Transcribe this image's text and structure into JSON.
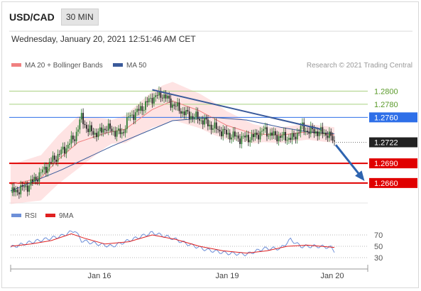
{
  "header": {
    "symbol": "USD/CAD",
    "timeframe": "30 MIN",
    "datetime": "Wednesday, January 20, 2021 12:51:46 AM CET"
  },
  "legend": {
    "bollinger": "MA 20 + Bollinger Bands",
    "ma50": "MA 50",
    "credit": "Research © 2021 Trading Central"
  },
  "rsi_legend": {
    "rsi": "RSI",
    "ma9": "9MA"
  },
  "colors": {
    "up": "#2e7d32",
    "down": "#222222",
    "bollinger": "#fdd0d0",
    "ma20": "#f08080",
    "ma50": "#3a5a9a",
    "rsi": "#6d8fd8",
    "rsi_ma": "#e02020",
    "resistance": "#a8d080",
    "support": "#e00000",
    "pivot": "#2e6fe8"
  },
  "chart_data": [
    {
      "type": "candlestick",
      "ylim": [
        1.2635,
        1.2822
      ],
      "x_ticks": [
        "Jan 16",
        "Jan 19",
        "Jan 20"
      ],
      "levels": [
        {
          "label": "1.2800",
          "value": 1.28,
          "kind": "resistance"
        },
        {
          "label": "1.2780",
          "value": 1.278,
          "kind": "resistance"
        },
        {
          "label": "1.2760",
          "value": 1.276,
          "kind": "pivot"
        },
        {
          "label": "1.2722",
          "value": 1.2722,
          "kind": "current"
        },
        {
          "label": "1.2690",
          "value": 1.269,
          "kind": "support"
        },
        {
          "label": "1.2660",
          "value": 1.266,
          "kind": "support"
        }
      ],
      "trendline": [
        [
          1.2802,
          1.2742
        ]
      ],
      "forecast_target": 1.266,
      "price_anchors": [
        [
          0,
          1.2645
        ],
        [
          10,
          1.2655
        ],
        [
          18,
          1.2675
        ],
        [
          25,
          1.2695
        ],
        [
          32,
          1.2712
        ],
        [
          38,
          1.273
        ],
        [
          42,
          1.276
        ],
        [
          46,
          1.274
        ],
        [
          52,
          1.2735
        ],
        [
          56,
          1.2745
        ],
        [
          60,
          1.274
        ],
        [
          66,
          1.2735
        ],
        [
          70,
          1.276
        ],
        [
          76,
          1.277
        ],
        [
          84,
          1.279
        ],
        [
          90,
          1.2795
        ],
        [
          96,
          1.278
        ],
        [
          104,
          1.2765
        ],
        [
          112,
          1.2758
        ],
        [
          120,
          1.2745
        ],
        [
          128,
          1.2735
        ],
        [
          136,
          1.2728
        ],
        [
          144,
          1.273
        ],
        [
          150,
          1.274
        ],
        [
          156,
          1.2732
        ],
        [
          162,
          1.273
        ],
        [
          168,
          1.2728
        ],
        [
          172,
          1.2745
        ],
        [
          176,
          1.274
        ],
        [
          182,
          1.2738
        ],
        [
          188,
          1.2735
        ],
        [
          192,
          1.2722
        ]
      ],
      "series": [
        {
          "name": "MA 20 + Bollinger Bands",
          "ma20": [
            [
              0,
              1.2658
            ],
            [
              18,
              1.2668
            ],
            [
              28,
              1.2695
            ],
            [
              40,
              1.2722
            ],
            [
              56,
              1.2736
            ],
            [
              68,
              1.2742
            ],
            [
              84,
              1.2772
            ],
            [
              96,
              1.2785
            ],
            [
              112,
              1.277
            ],
            [
              128,
              1.2748
            ],
            [
              144,
              1.2735
            ],
            [
              160,
              1.2733
            ],
            [
              176,
              1.2738
            ],
            [
              192,
              1.2733
            ]
          ],
          "width": [
            [
              0,
              0.003
            ],
            [
              40,
              0.004
            ],
            [
              60,
              0.0018
            ],
            [
              90,
              0.003
            ],
            [
              120,
              0.0025
            ],
            [
              150,
              0.0012
            ],
            [
              192,
              0.0012
            ]
          ]
        },
        {
          "name": "MA 50",
          "values": [
            [
              0,
              1.2648
            ],
            [
              30,
              1.268
            ],
            [
              60,
              1.2716
            ],
            [
              84,
              1.2742
            ],
            [
              96,
              1.2755
            ],
            [
              120,
              1.276
            ],
            [
              140,
              1.2756
            ],
            [
              160,
              1.2745
            ],
            [
              176,
              1.2738
            ],
            [
              192,
              1.2735
            ]
          ]
        }
      ]
    },
    {
      "type": "line",
      "ylim": [
        20,
        90
      ],
      "y_ticks": [
        70,
        50,
        30
      ],
      "series": [
        {
          "name": "RSI",
          "values": [
            [
              0,
              48
            ],
            [
              10,
              56
            ],
            [
              20,
              62
            ],
            [
              30,
              68
            ],
            [
              38,
              78
            ],
            [
              42,
              60
            ],
            [
              52,
              54
            ],
            [
              60,
              50
            ],
            [
              72,
              62
            ],
            [
              84,
              74
            ],
            [
              96,
              64
            ],
            [
              104,
              55
            ],
            [
              116,
              44
            ],
            [
              128,
              38
            ],
            [
              140,
              36
            ],
            [
              150,
              46
            ],
            [
              160,
              46
            ],
            [
              166,
              62
            ],
            [
              172,
              50
            ],
            [
              182,
              50
            ],
            [
              190,
              48
            ],
            [
              192,
              42
            ]
          ]
        },
        {
          "name": "9MA",
          "values": [
            [
              0,
              50
            ],
            [
              12,
              54
            ],
            [
              24,
              60
            ],
            [
              36,
              72
            ],
            [
              44,
              64
            ],
            [
              56,
              54
            ],
            [
              70,
              58
            ],
            [
              84,
              70
            ],
            [
              98,
              62
            ],
            [
              112,
              50
            ],
            [
              126,
              42
            ],
            [
              140,
              38
            ],
            [
              152,
              42
            ],
            [
              164,
              50
            ],
            [
              176,
              52
            ],
            [
              192,
              48
            ]
          ]
        }
      ]
    }
  ]
}
